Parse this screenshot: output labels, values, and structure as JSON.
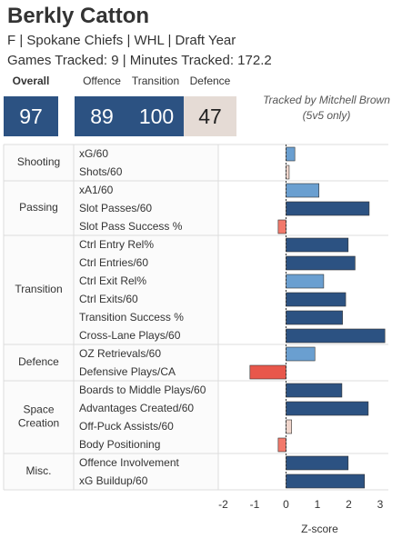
{
  "player": {
    "name": "Berkly Catton",
    "info_line": "F | Spokane Chiefs | WHL | Draft Year",
    "tracking_line": "Games Tracked: 9 | Minutes Tracked: 172.2"
  },
  "scores": {
    "overall_label": "Overall",
    "overall_value": "97",
    "offence_label": "Offence",
    "offence_value": "89",
    "transition_label": "Transition",
    "transition_value": "100",
    "defence_label": "Defence",
    "defence_value": "47"
  },
  "tracked_by": {
    "line1": "Tracked by Mitchell Brown",
    "line2": "(5v5 only)"
  },
  "colors": {
    "dark_blue": "#2c5282",
    "light_blue": "#6a9fd0",
    "salmon": "#f2796b",
    "red": "#e8574b",
    "pale": "#f0d6cc",
    "score_pale_bg": "#e5dbd5",
    "border": "#dcdcdc"
  },
  "chart_data": {
    "type": "bar",
    "orientation": "horizontal",
    "xlabel": "Z-score",
    "xlim": [
      -2,
      3
    ],
    "xticks": [
      -2,
      -1,
      0,
      1,
      2,
      3
    ],
    "groups": [
      {
        "category": "Shooting",
        "metrics": [
          {
            "label": "xG/60",
            "value": 0.28,
            "color": "light_blue"
          },
          {
            "label": "Shots/60",
            "value": 0.1,
            "color": "pale"
          }
        ]
      },
      {
        "category": "Passing",
        "metrics": [
          {
            "label": "xA1/60",
            "value": 1.05,
            "color": "light_blue"
          },
          {
            "label": "Slot Passes/60",
            "value": 2.65,
            "color": "dark_blue"
          },
          {
            "label": "Slot Pass Success %",
            "value": -0.25,
            "color": "salmon"
          }
        ]
      },
      {
        "category": "Transition",
        "metrics": [
          {
            "label": "Ctrl Entry Rel%",
            "value": 1.98,
            "color": "dark_blue"
          },
          {
            "label": "Ctrl Entries/60",
            "value": 2.2,
            "color": "dark_blue"
          },
          {
            "label": "Ctrl Exit Rel%",
            "value": 1.2,
            "color": "light_blue"
          },
          {
            "label": "Ctrl Exits/60",
            "value": 1.9,
            "color": "dark_blue"
          },
          {
            "label": "Transition Success %",
            "value": 1.8,
            "color": "dark_blue"
          },
          {
            "label": "Cross-Lane Plays/60",
            "value": 3.15,
            "color": "dark_blue"
          }
        ]
      },
      {
        "category": "Defence",
        "metrics": [
          {
            "label": "OZ Retrievals/60",
            "value": 0.92,
            "color": "light_blue"
          },
          {
            "label": "Defensive Plays/CA",
            "value": -1.15,
            "color": "red"
          }
        ]
      },
      {
        "category": "Space Creation",
        "metrics": [
          {
            "label": "Boards to Middle Plays/60",
            "value": 1.78,
            "color": "dark_blue"
          },
          {
            "label": "Advantages Created/60",
            "value": 2.62,
            "color": "dark_blue"
          },
          {
            "label": "Off-Puck Assists/60",
            "value": 0.18,
            "color": "pale"
          },
          {
            "label": "Body Positioning",
            "value": -0.25,
            "color": "salmon"
          }
        ]
      },
      {
        "category": "Misc.",
        "metrics": [
          {
            "label": "Offence Involvement",
            "value": 1.98,
            "color": "dark_blue"
          },
          {
            "label": "xG Buildup/60",
            "value": 2.5,
            "color": "dark_blue"
          }
        ]
      }
    ]
  }
}
